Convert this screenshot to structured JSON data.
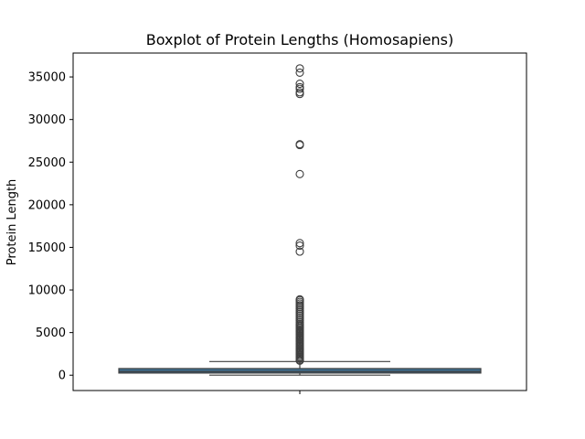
{
  "chart_data": {
    "type": "boxplot",
    "title": "Boxplot of Protein Lengths (Homosapiens)",
    "xlabel": "",
    "ylabel": "Protein Length",
    "ylim": [
      -1800,
      37800
    ],
    "yticks": [
      0,
      5000,
      10000,
      15000,
      20000,
      25000,
      30000,
      35000
    ],
    "grid": false,
    "legend": "none",
    "box": {
      "min_whisker": 2,
      "q1": 250,
      "median": 430,
      "q3": 780,
      "max_whisker": 1600,
      "fill_color": "#3d6e8f",
      "edge_color": "#3f3f3f"
    },
    "outliers": [
      1700,
      1800,
      1950,
      2100,
      2250,
      2400,
      2550,
      2700,
      2850,
      3000,
      3150,
      3300,
      3450,
      3600,
      3750,
      3900,
      4050,
      4200,
      4350,
      4500,
      4650,
      4800,
      4950,
      5100,
      5250,
      5400,
      5550,
      5700,
      5850,
      6000,
      6200,
      6400,
      6600,
      6800,
      7000,
      7200,
      7400,
      7600,
      7800,
      8000,
      8200,
      8400,
      8600,
      8800,
      8900,
      14500,
      15200,
      15500,
      23600,
      27000,
      27100,
      33000,
      33200,
      33600,
      33800,
      34200,
      35500,
      36000
    ]
  }
}
